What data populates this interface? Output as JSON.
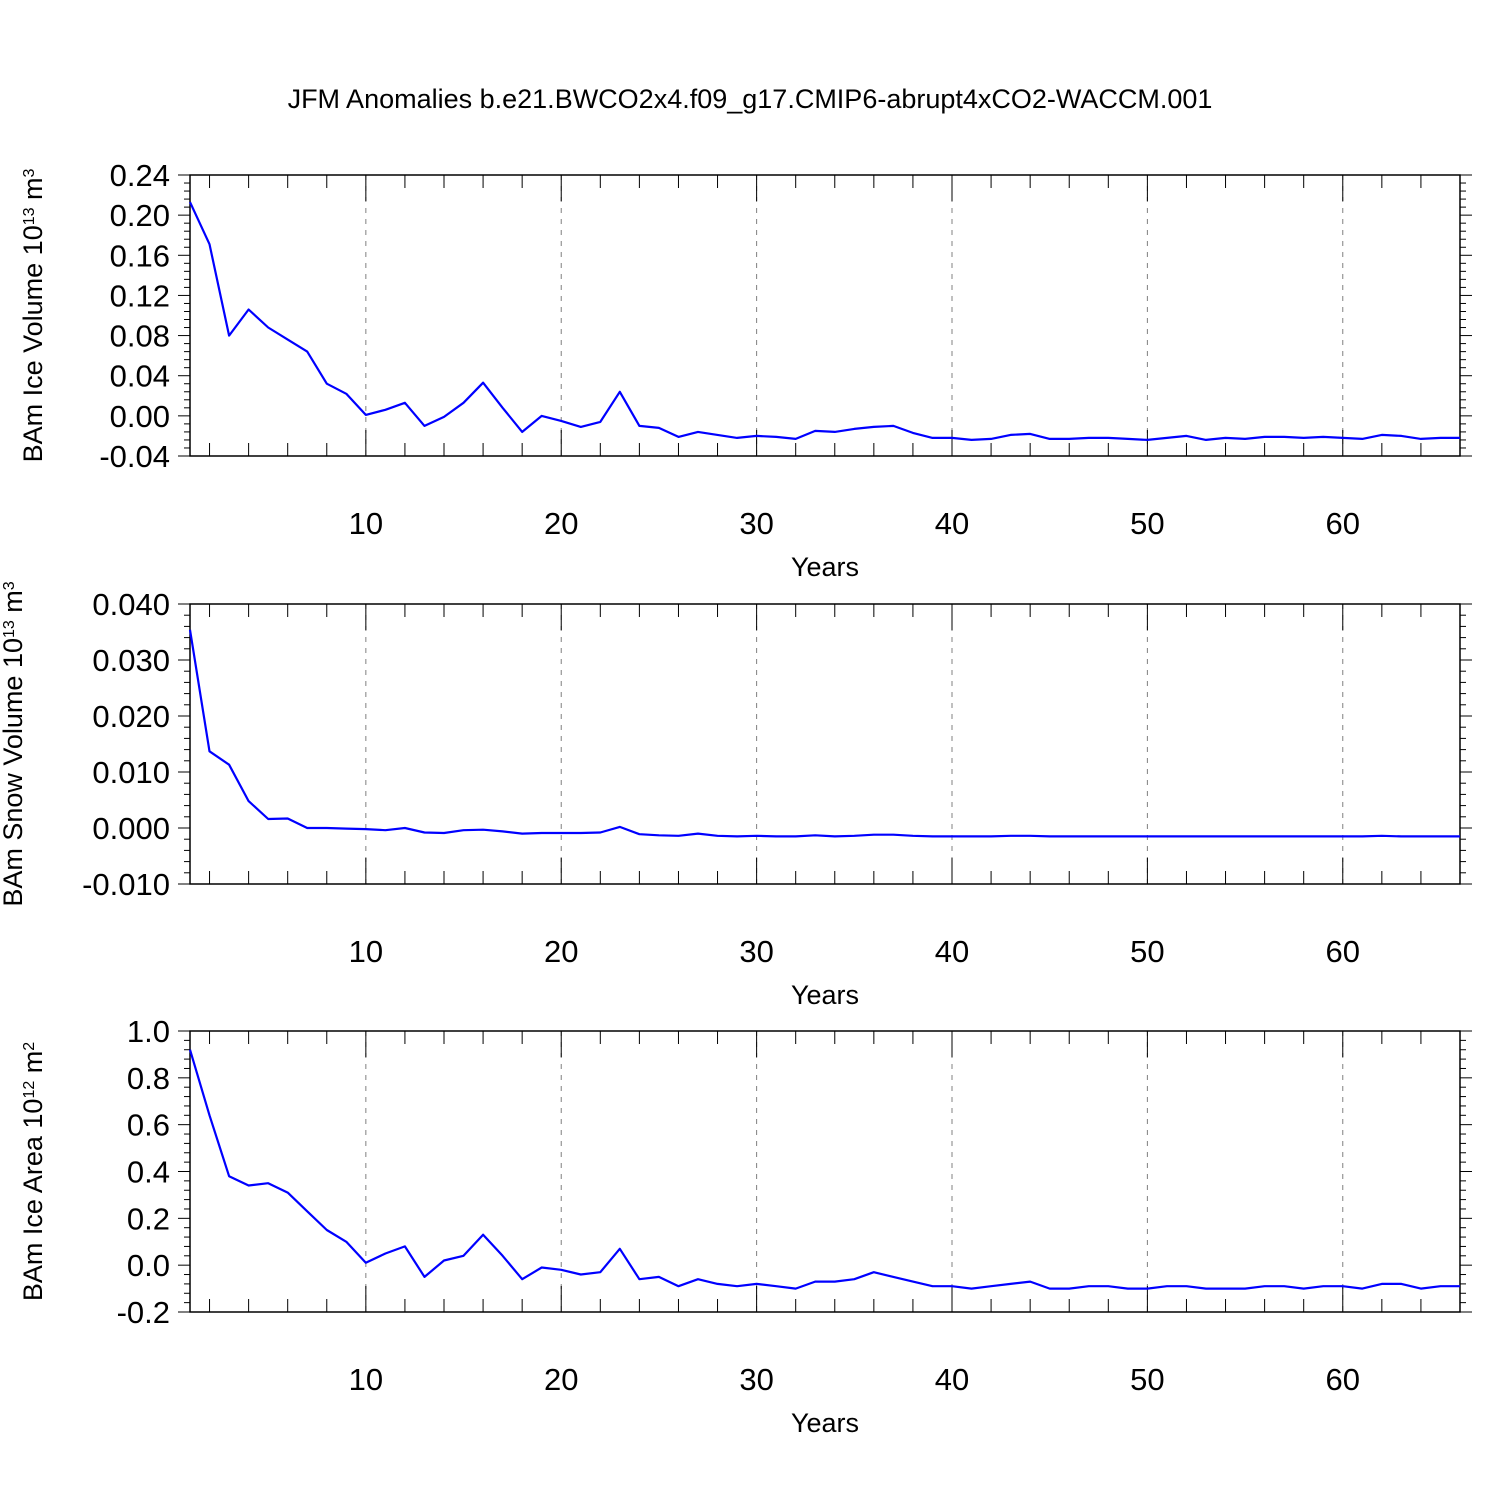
{
  "title": "JFM Anomalies b.e21.BWCO2x4.f09_g17.CMIP6-abrupt4xCO2-WACCM.001",
  "colors": {
    "line": "#0000ff",
    "axis": "#000000",
    "grid": "#808080"
  },
  "chart_data": [
    {
      "type": "line",
      "ylabel_main": "BAm Ice Volume 10",
      "ylabel_exp": "13",
      "ylabel_unit": " m",
      "ylabel_unit_exp": "3",
      "xlabel": "Years",
      "xlim": [
        1,
        66
      ],
      "ylim": [
        -0.04,
        0.24
      ],
      "xticks": [
        10,
        20,
        30,
        40,
        50,
        60
      ],
      "yticks": [
        -0.04,
        0.0,
        0.04,
        0.08,
        0.12,
        0.16,
        0.2,
        0.24
      ],
      "ytick_labels": [
        "-0.04",
        "0.00",
        "0.04",
        "0.08",
        "0.12",
        "0.16",
        "0.20",
        "0.24"
      ],
      "grid": "vertical dashed at major x ticks",
      "series": [
        {
          "x": [
            1,
            2,
            3,
            4,
            5,
            6,
            7,
            8,
            9,
            10,
            11,
            12,
            13,
            14,
            15,
            16,
            17,
            18,
            19,
            20,
            21,
            22,
            23,
            24,
            25,
            26,
            27,
            28,
            29,
            30,
            31,
            32,
            33,
            34,
            35,
            36,
            37,
            38,
            39,
            40,
            41,
            42,
            43,
            44,
            45,
            46,
            47,
            48,
            49,
            50,
            51,
            52,
            53,
            54,
            55,
            56,
            57,
            58,
            59,
            60,
            61,
            62,
            63,
            64,
            65,
            66
          ],
          "values": [
            0.213,
            0.171,
            0.08,
            0.106,
            0.088,
            0.076,
            0.064,
            0.032,
            0.022,
            0.001,
            0.006,
            0.013,
            -0.01,
            -0.001,
            0.013,
            0.033,
            0.008,
            -0.016,
            0.0,
            -0.005,
            -0.011,
            -0.006,
            0.024,
            -0.01,
            -0.012,
            -0.021,
            -0.016,
            -0.019,
            -0.022,
            -0.02,
            -0.021,
            -0.023,
            -0.015,
            -0.016,
            -0.013,
            -0.011,
            -0.01,
            -0.017,
            -0.022,
            -0.022,
            -0.024,
            -0.023,
            -0.019,
            -0.018,
            -0.023,
            -0.023,
            -0.022,
            -0.022,
            -0.023,
            -0.024,
            -0.022,
            -0.02,
            -0.024,
            -0.022,
            -0.023,
            -0.021,
            -0.021,
            -0.022,
            -0.021,
            -0.022,
            -0.023,
            -0.019,
            -0.02,
            -0.023,
            -0.022,
            -0.022
          ]
        }
      ]
    },
    {
      "type": "line",
      "ylabel_main": "BAm Snow Volume 10",
      "ylabel_exp": "13",
      "ylabel_unit": " m",
      "ylabel_unit_exp": "3",
      "xlabel": "Years",
      "xlim": [
        1,
        66
      ],
      "ylim": [
        -0.01,
        0.04
      ],
      "xticks": [
        10,
        20,
        30,
        40,
        50,
        60
      ],
      "yticks": [
        -0.01,
        0.0,
        0.01,
        0.02,
        0.03,
        0.04
      ],
      "ytick_labels": [
        "-0.010",
        "0.000",
        "0.010",
        "0.020",
        "0.030",
        "0.040"
      ],
      "grid": "vertical dashed at major x ticks",
      "series": [
        {
          "x": [
            1,
            2,
            3,
            4,
            5,
            6,
            7,
            8,
            9,
            10,
            11,
            12,
            13,
            14,
            15,
            16,
            17,
            18,
            19,
            20,
            21,
            22,
            23,
            24,
            25,
            26,
            27,
            28,
            29,
            30,
            31,
            32,
            33,
            34,
            35,
            36,
            37,
            38,
            39,
            40,
            41,
            42,
            43,
            44,
            45,
            46,
            47,
            48,
            49,
            50,
            51,
            52,
            53,
            54,
            55,
            56,
            57,
            58,
            59,
            60,
            61,
            62,
            63,
            64,
            65,
            66
          ],
          "values": [
            0.0354,
            0.0137,
            0.0113,
            0.0048,
            0.0016,
            0.0017,
            0.0,
            0.0,
            -0.0001,
            -0.0002,
            -0.0004,
            0.0,
            -0.0008,
            -0.0009,
            -0.0004,
            -0.0003,
            -0.0006,
            -0.001,
            -0.0009,
            -0.0009,
            -0.0009,
            -0.0008,
            0.0002,
            -0.0011,
            -0.0013,
            -0.0014,
            -0.001,
            -0.0014,
            -0.0015,
            -0.0014,
            -0.0015,
            -0.0015,
            -0.0013,
            -0.0015,
            -0.0014,
            -0.0012,
            -0.0012,
            -0.0014,
            -0.0015,
            -0.0015,
            -0.0015,
            -0.0015,
            -0.0014,
            -0.0014,
            -0.0015,
            -0.0015,
            -0.0015,
            -0.0015,
            -0.0015,
            -0.0015,
            -0.0015,
            -0.0015,
            -0.0015,
            -0.0015,
            -0.0015,
            -0.0015,
            -0.0015,
            -0.0015,
            -0.0015,
            -0.0015,
            -0.0015,
            -0.0014,
            -0.0015,
            -0.0015,
            -0.0015,
            -0.0015
          ]
        }
      ]
    },
    {
      "type": "line",
      "ylabel_main": "BAm Ice Area 10",
      "ylabel_exp": "12",
      "ylabel_unit": " m",
      "ylabel_unit_exp": "2",
      "xlabel": "Years",
      "xlim": [
        1,
        66
      ],
      "ylim": [
        -0.2,
        1.0
      ],
      "xticks": [
        10,
        20,
        30,
        40,
        50,
        60
      ],
      "yticks": [
        -0.2,
        0.0,
        0.2,
        0.4,
        0.6,
        0.8,
        1.0
      ],
      "ytick_labels": [
        "-0.2",
        "0.0",
        "0.2",
        "0.4",
        "0.6",
        "0.8",
        "1.0"
      ],
      "grid": "vertical dashed at major x ticks",
      "series": [
        {
          "x": [
            1,
            2,
            3,
            4,
            5,
            6,
            7,
            8,
            9,
            10,
            11,
            12,
            13,
            14,
            15,
            16,
            17,
            18,
            19,
            20,
            21,
            22,
            23,
            24,
            25,
            26,
            27,
            28,
            29,
            30,
            31,
            32,
            33,
            34,
            35,
            36,
            37,
            38,
            39,
            40,
            41,
            42,
            43,
            44,
            45,
            46,
            47,
            48,
            49,
            50,
            51,
            52,
            53,
            54,
            55,
            56,
            57,
            58,
            59,
            60,
            61,
            62,
            63,
            64,
            65,
            66
          ],
          "values": [
            0.92,
            0.64,
            0.38,
            0.34,
            0.35,
            0.31,
            0.23,
            0.15,
            0.1,
            0.01,
            0.05,
            0.08,
            -0.05,
            0.02,
            0.04,
            0.13,
            0.04,
            -0.06,
            -0.01,
            -0.02,
            -0.04,
            -0.03,
            0.07,
            -0.06,
            -0.05,
            -0.09,
            -0.06,
            -0.08,
            -0.09,
            -0.08,
            -0.09,
            -0.1,
            -0.07,
            -0.07,
            -0.06,
            -0.03,
            -0.05,
            -0.07,
            -0.09,
            -0.09,
            -0.1,
            -0.09,
            -0.08,
            -0.07,
            -0.1,
            -0.1,
            -0.09,
            -0.09,
            -0.1,
            -0.1,
            -0.09,
            -0.09,
            -0.1,
            -0.1,
            -0.1,
            -0.09,
            -0.09,
            -0.1,
            -0.09,
            -0.09,
            -0.1,
            -0.08,
            -0.08,
            -0.1,
            -0.09,
            -0.09
          ]
        }
      ]
    }
  ]
}
